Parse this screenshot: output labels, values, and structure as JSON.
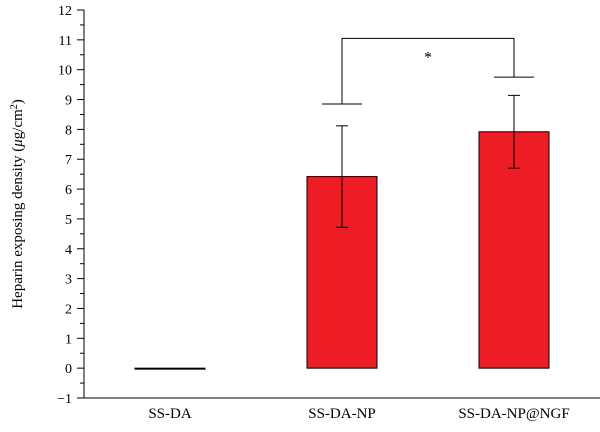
{
  "chart_data": {
    "type": "bar",
    "categories": [
      "SS-DA",
      "SS-DA-NP",
      "SS-DA-NP@NGF"
    ],
    "values": [
      0,
      6.42,
      7.92
    ],
    "errors": [
      0,
      1.7,
      1.22
    ],
    "ylabel_main": "Heparin exposing density (",
    "ylabel_mu": "μ",
    "ylabel_unit": "g/cm",
    "ylabel_sup": "2",
    "ylabel_close": ")",
    "ylim": [
      -1,
      12
    ],
    "yticks": [
      -1,
      0,
      1,
      2,
      3,
      4,
      5,
      6,
      7,
      8,
      9,
      10,
      11,
      12
    ],
    "bar_color": "#ee1c25",
    "significance": {
      "from": 1,
      "to": 2,
      "label": "*",
      "y": 11.05,
      "left_drop": 8.85,
      "right_drop": 9.75
    },
    "grid": false
  }
}
